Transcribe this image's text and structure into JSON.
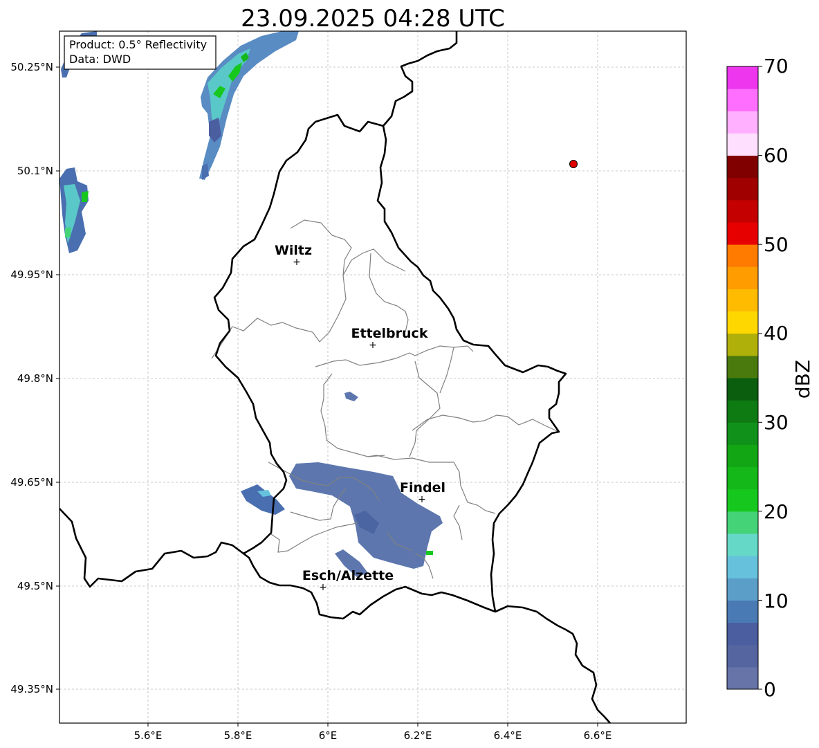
{
  "title": "23.09.2025 04:28 UTC",
  "info": {
    "product": "Product: 0.5° Reflectivity",
    "data": "Data: DWD"
  },
  "map": {
    "lon_ticks": [
      "5.6°E",
      "5.8°E",
      "6°E",
      "6.2°E",
      "6.4°E",
      "6.6°E"
    ],
    "lat_ticks": [
      "50.25°N",
      "50.1°N",
      "49.95°N",
      "49.8°N",
      "49.65°N",
      "49.5°N",
      "49.35°N"
    ],
    "cities": [
      {
        "name": "Wiltz"
      },
      {
        "name": "Ettelbruck"
      },
      {
        "name": "Findel"
      },
      {
        "name": "Esch/Alzette"
      }
    ],
    "radar_site_color": "#e00000",
    "border_color": "#000000",
    "canton_color": "#808080",
    "grid": true
  },
  "colorbar": {
    "label": "dBZ",
    "ticks": [
      "0",
      "10",
      "20",
      "30",
      "40",
      "50",
      "60",
      "70"
    ],
    "colors": [
      "#6674a8",
      "#5565a0",
      "#4a5ea0",
      "#4a7ab4",
      "#5b9ec8",
      "#66c2dc",
      "#66d8c8",
      "#44d477",
      "#16c81e",
      "#14b818",
      "#12a614",
      "#10921a",
      "#0e7a12",
      "#0a5e0e",
      "#4a7a0e",
      "#b0b00a",
      "#ffd700",
      "#ffbb00",
      "#ff9c00",
      "#ff7b00",
      "#e60000",
      "#c40000",
      "#a00000",
      "#800000",
      "#ffdffe",
      "#ffb0ff",
      "#ff6eff",
      "#ee36ee"
    ]
  }
}
